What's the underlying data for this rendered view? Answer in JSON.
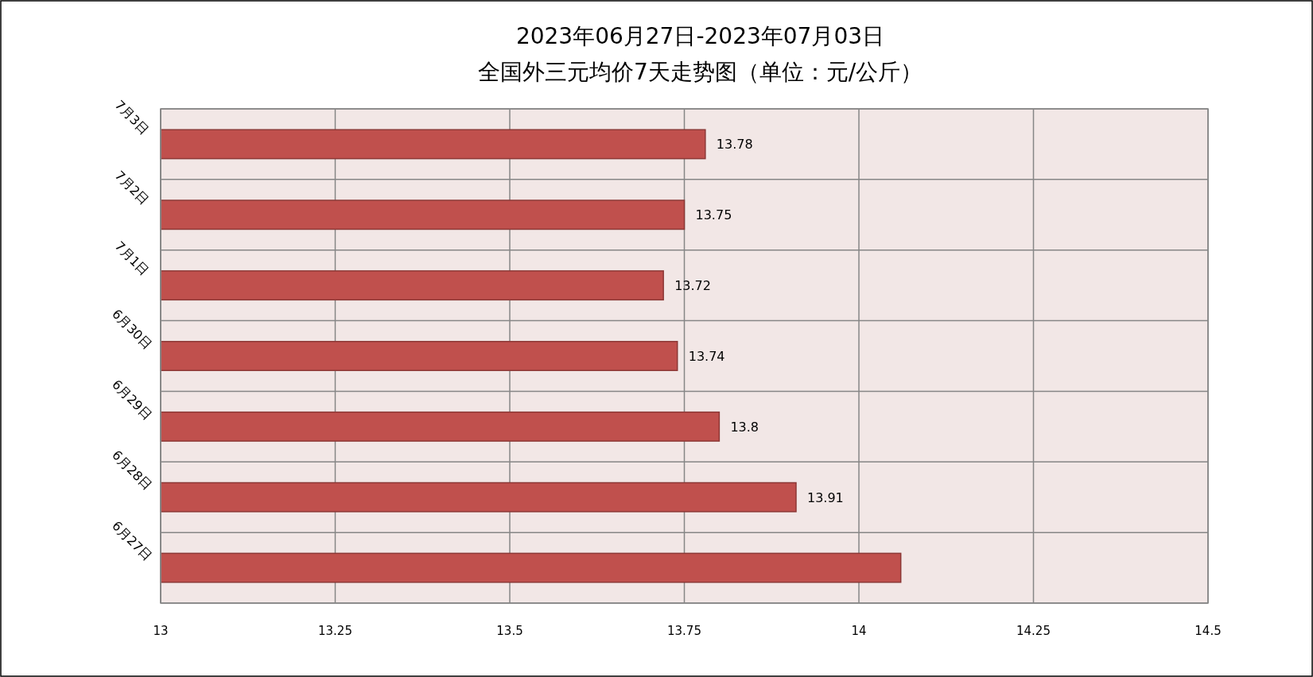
{
  "chart_data": {
    "type": "bar",
    "orientation": "horizontal",
    "title": "2023年06月27日-2023年07月03日",
    "subtitle": "全国外三元均价7天走势图（单位：元/公斤）",
    "categories": [
      "7月3日",
      "7月2日",
      "7月1日",
      "6月30日",
      "6月29日",
      "6月28日",
      "6月27日"
    ],
    "values": [
      13.78,
      13.75,
      13.72,
      13.74,
      13.8,
      13.91,
      14.06
    ],
    "value_labels": [
      "13.78",
      "13.75",
      "13.72",
      "13.74",
      "13.8",
      "13.91",
      null
    ],
    "color": "#c0504d",
    "xlim": [
      13,
      14.5
    ],
    "xticks": [
      13,
      13.25,
      13.5,
      13.75,
      14,
      14.25,
      14.5
    ],
    "grid": true
  }
}
